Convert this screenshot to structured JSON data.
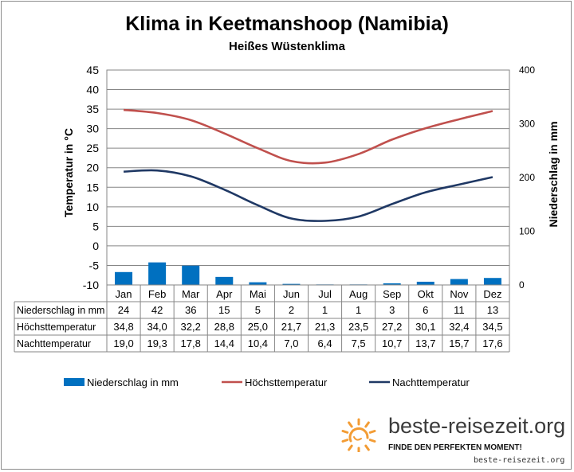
{
  "title": "Klima in Keetmanshoop (Namibia)",
  "subtitle": "Heißes Wüstenklima",
  "chart_data": {
    "type": "bar+line",
    "categories": [
      "Jan",
      "Feb",
      "Mar",
      "Apr",
      "Mai",
      "Jun",
      "Jul",
      "Aug",
      "Sep",
      "Okt",
      "Nov",
      "Dez"
    ],
    "series": [
      {
        "name": "Niederschlag in mm",
        "type": "bar",
        "axis": "right",
        "color": "#0070c0",
        "values": [
          24,
          42,
          36,
          15,
          5,
          2,
          1,
          1,
          3,
          6,
          11,
          13
        ],
        "labels": [
          "24",
          "42",
          "36",
          "15",
          "5",
          "2",
          "1",
          "1",
          "3",
          "6",
          "11",
          "13"
        ]
      },
      {
        "name": "Höchsttemperatur",
        "type": "line",
        "axis": "left",
        "color": "#c0504d",
        "values": [
          34.8,
          34.0,
          32.2,
          28.8,
          25.0,
          21.7,
          21.3,
          23.5,
          27.2,
          30.1,
          32.4,
          34.5
        ],
        "labels": [
          "34,8",
          "34,0",
          "32,2",
          "28,8",
          "25,0",
          "21,7",
          "21,3",
          "23,5",
          "27,2",
          "30,1",
          "32,4",
          "34,5"
        ]
      },
      {
        "name": "Nachttemperatur",
        "type": "line",
        "axis": "left",
        "color": "#1f3864",
        "values": [
          19.0,
          19.3,
          17.8,
          14.4,
          10.4,
          7.0,
          6.4,
          7.5,
          10.7,
          13.7,
          15.7,
          17.6
        ],
        "labels": [
          "19,0",
          "19,3",
          "17,8",
          "14,4",
          "10,4",
          "7,0",
          "6,4",
          "7,5",
          "10,7",
          "13,7",
          "15,7",
          "17,6"
        ]
      }
    ],
    "ylabel": "Temperatur in °C",
    "ylim": [
      -10,
      45
    ],
    "yticks": [
      "45",
      "40",
      "35",
      "30",
      "25",
      "20",
      "15",
      "10",
      "5",
      "0",
      "-5",
      "-10"
    ],
    "y2label": "Niederschlag in mm",
    "y2lim": [
      0,
      400
    ],
    "y2ticks": [
      "400",
      "300",
      "200",
      "100",
      "0"
    ],
    "grid": true,
    "legend": "bottom"
  },
  "brand": {
    "name": "beste-reisezeit.org",
    "slogan": "FINDE DEN PERFEKTEN MOMENT!",
    "url": "beste-reisezeit.org",
    "sun_color": "#f39c34",
    "icon": "sun-icon"
  }
}
